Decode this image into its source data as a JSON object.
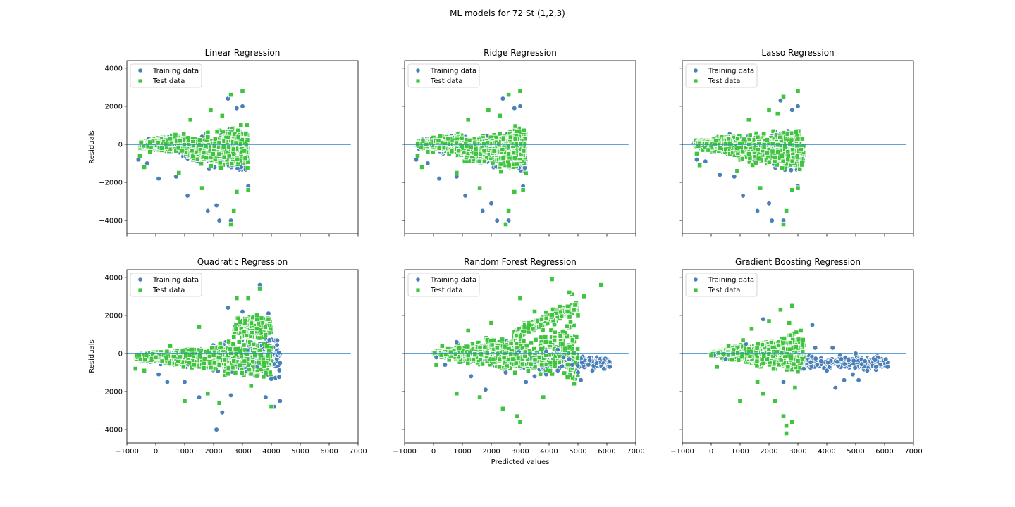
{
  "figure": {
    "title": "ML models for 72 St (1,2,3)"
  },
  "colors": {
    "training": "#4a7fb8",
    "test": "#3ec43e",
    "zero_line": "#2e86c8",
    "axes": "#000000"
  },
  "shared_axes": {
    "xlim": [
      -1000,
      7000
    ],
    "ylim": [
      -4700,
      4400
    ],
    "x_ticks": [
      -1000,
      0,
      1000,
      2000,
      3000,
      4000,
      5000,
      6000,
      7000
    ],
    "y_ticks": [
      -4000,
      -2000,
      0,
      2000,
      4000
    ],
    "xlabel": "Predicted values",
    "ylabel": "Residuals",
    "zero_line_x": [
      -1000,
      6750
    ]
  },
  "legend": {
    "position": "top-left",
    "entries": [
      "Training data",
      "Test data"
    ]
  },
  "chart_data": [
    {
      "type": "scatter",
      "id": "linear",
      "title": "Linear Regression",
      "series": [
        {
          "name": "Training data",
          "marker": "circle",
          "values": [
            [
              -600,
              -800
            ],
            [
              -300,
              -1000
            ],
            [
              100,
              -1800
            ],
            [
              700,
              -1700
            ],
            [
              1100,
              -2700
            ],
            [
              1800,
              -3500
            ],
            [
              2100,
              -3200
            ],
            [
              2200,
              -4000
            ],
            [
              2600,
              -4000
            ],
            [
              2500,
              2400
            ],
            [
              3000,
              2000
            ],
            [
              2800,
              1900
            ],
            [
              3200,
              -2200
            ]
          ]
        },
        {
          "name": "Test data",
          "marker": "square",
          "values": [
            [
              -550,
              -600
            ],
            [
              -400,
              -1200
            ],
            [
              -200,
              -400
            ],
            [
              200,
              -200
            ],
            [
              500,
              300
            ],
            [
              800,
              -1500
            ],
            [
              1200,
              1300
            ],
            [
              1600,
              -2300
            ],
            [
              1900,
              1800
            ],
            [
              2300,
              1500
            ],
            [
              2600,
              2600
            ],
            [
              3000,
              2800
            ],
            [
              2800,
              -2500
            ],
            [
              3200,
              -2400
            ],
            [
              2600,
              -4200
            ],
            [
              2700,
              -3500
            ]
          ]
        }
      ]
    },
    {
      "type": "scatter",
      "id": "ridge",
      "title": "Ridge Regression",
      "series": [
        {
          "name": "Training data",
          "marker": "circle",
          "values": [
            [
              -600,
              -800
            ],
            [
              -200,
              -1000
            ],
            [
              200,
              -1800
            ],
            [
              800,
              -1700
            ],
            [
              1100,
              -2700
            ],
            [
              1700,
              -3500
            ],
            [
              2000,
              -3100
            ],
            [
              2200,
              -4000
            ],
            [
              2600,
              -4000
            ],
            [
              2400,
              2400
            ],
            [
              3000,
              2000
            ],
            [
              2800,
              1900
            ],
            [
              3100,
              -2200
            ]
          ]
        },
        {
          "name": "Test data",
          "marker": "square",
          "values": [
            [
              -550,
              -600
            ],
            [
              -400,
              -1200
            ],
            [
              -200,
              -400
            ],
            [
              200,
              -200
            ],
            [
              500,
              300
            ],
            [
              800,
              -1500
            ],
            [
              1200,
              1300
            ],
            [
              1600,
              -2300
            ],
            [
              1900,
              1800
            ],
            [
              2300,
              1500
            ],
            [
              2600,
              2600
            ],
            [
              3000,
              2800
            ],
            [
              2800,
              -2500
            ],
            [
              3100,
              -2400
            ],
            [
              2500,
              -4200
            ],
            [
              2600,
              -3500
            ]
          ]
        }
      ]
    },
    {
      "type": "scatter",
      "id": "lasso",
      "title": "Lasso Regression",
      "series": [
        {
          "name": "Training data",
          "marker": "circle",
          "values": [
            [
              -500,
              -800
            ],
            [
              -200,
              -900
            ],
            [
              300,
              -1600
            ],
            [
              800,
              -1700
            ],
            [
              1100,
              -2700
            ],
            [
              1600,
              -3500
            ],
            [
              2000,
              -3100
            ],
            [
              2100,
              -4000
            ],
            [
              2500,
              -4000
            ],
            [
              2400,
              2300
            ],
            [
              3000,
              2000
            ],
            [
              2800,
              1800
            ],
            [
              3000,
              -2200
            ]
          ]
        },
        {
          "name": "Test data",
          "marker": "square",
          "values": [
            [
              -500,
              -500
            ],
            [
              -400,
              -1100
            ],
            [
              -100,
              -300
            ],
            [
              300,
              -200
            ],
            [
              600,
              300
            ],
            [
              900,
              -1400
            ],
            [
              1300,
              1300
            ],
            [
              1700,
              -2300
            ],
            [
              2000,
              1800
            ],
            [
              2300,
              1600
            ],
            [
              2500,
              2500
            ],
            [
              3000,
              2800
            ],
            [
              2800,
              -2400
            ],
            [
              3000,
              -2300
            ],
            [
              2500,
              -4200
            ],
            [
              2600,
              -3500
            ]
          ]
        }
      ]
    },
    {
      "type": "scatter",
      "id": "quadratic",
      "title": "Quadratic Regression",
      "series": [
        {
          "name": "Training data",
          "marker": "circle",
          "values": [
            [
              -700,
              -800
            ],
            [
              100,
              -1100
            ],
            [
              400,
              -1500
            ],
            [
              1000,
              -1500
            ],
            [
              1500,
              -2300
            ],
            [
              2100,
              -4000
            ],
            [
              2300,
              -3100
            ],
            [
              2600,
              -2200
            ],
            [
              2500,
              2400
            ],
            [
              3000,
              2200
            ],
            [
              3600,
              3600
            ],
            [
              3900,
              2100
            ],
            [
              4300,
              -2500
            ],
            [
              4100,
              -2800
            ],
            [
              3800,
              -2300
            ],
            [
              4300,
              -500
            ]
          ]
        },
        {
          "name": "Test data",
          "marker": "square",
          "values": [
            [
              -700,
              -800
            ],
            [
              -400,
              -900
            ],
            [
              0,
              -200
            ],
            [
              500,
              400
            ],
            [
              1000,
              -2500
            ],
            [
              1500,
              1400
            ],
            [
              1800,
              -2100
            ],
            [
              2200,
              -2600
            ],
            [
              2800,
              2900
            ],
            [
              3600,
              3400
            ],
            [
              3200,
              2900
            ],
            [
              3500,
              2000
            ],
            [
              3900,
              1800
            ],
            [
              4000,
              -2800
            ],
            [
              3300,
              -1700
            ],
            [
              2700,
              -400
            ]
          ]
        }
      ]
    },
    {
      "type": "scatter",
      "id": "random-forest",
      "title": "Random Forest Regression",
      "series": [
        {
          "name": "Training data",
          "marker": "circle",
          "values": [
            [
              100,
              -200
            ],
            [
              400,
              -600
            ],
            [
              800,
              600
            ],
            [
              1300,
              -1200
            ],
            [
              1800,
              -1900
            ],
            [
              2500,
              -1000
            ],
            [
              3200,
              -1500
            ],
            [
              3500,
              -1200
            ],
            [
              3900,
              -1100
            ],
            [
              4300,
              -900
            ],
            [
              4700,
              -300
            ],
            [
              5000,
              -1000
            ],
            [
              5100,
              -1400
            ],
            [
              5500,
              -900
            ],
            [
              5900,
              -800
            ],
            [
              6100,
              -700
            ],
            [
              4800,
              -600
            ],
            [
              4500,
              -200
            ],
            [
              3900,
              100
            ],
            [
              4300,
              200
            ]
          ]
        },
        {
          "name": "Test data",
          "marker": "square",
          "values": [
            [
              100,
              -600
            ],
            [
              300,
              400
            ],
            [
              800,
              -2100
            ],
            [
              1200,
              1200
            ],
            [
              1600,
              -2300
            ],
            [
              2000,
              1600
            ],
            [
              2400,
              -2900
            ],
            [
              2900,
              -3300
            ],
            [
              3000,
              -3600
            ],
            [
              3000,
              2900
            ],
            [
              3500,
              2200
            ],
            [
              4100,
              3900
            ],
            [
              4800,
              3100
            ],
            [
              5800,
              3600
            ],
            [
              5000,
              2000
            ],
            [
              4700,
              3200
            ],
            [
              5200,
              3000
            ],
            [
              4200,
              1100
            ],
            [
              3800,
              -2300
            ],
            [
              3300,
              1500
            ]
          ]
        }
      ]
    },
    {
      "type": "scatter",
      "id": "gradient-boosting",
      "title": "Gradient Boosting Regression",
      "series": [
        {
          "name": "Training data",
          "marker": "circle",
          "values": [
            [
              100,
              -100
            ],
            [
              500,
              -300
            ],
            [
              1200,
              500
            ],
            [
              1800,
              1800
            ],
            [
              2500,
              -1500
            ],
            [
              3200,
              -800
            ],
            [
              3500,
              1500
            ],
            [
              3800,
              -400
            ],
            [
              4000,
              -900
            ],
            [
              4300,
              -1800
            ],
            [
              4600,
              -1400
            ],
            [
              4900,
              -1100
            ],
            [
              5100,
              -1400
            ],
            [
              5400,
              -900
            ],
            [
              5700,
              -700
            ],
            [
              6100,
              -700
            ],
            [
              5000,
              0
            ],
            [
              4500,
              -300
            ],
            [
              3600,
              300
            ],
            [
              4200,
              300
            ]
          ]
        },
        {
          "name": "Test data",
          "marker": "square",
          "values": [
            [
              0,
              -100
            ],
            [
              200,
              -700
            ],
            [
              600,
              400
            ],
            [
              1000,
              -2500
            ],
            [
              1400,
              1300
            ],
            [
              1800,
              -2100
            ],
            [
              2200,
              -2500
            ],
            [
              2400,
              2300
            ],
            [
              2500,
              -3300
            ],
            [
              2600,
              -3800
            ],
            [
              2600,
              -4200
            ],
            [
              2800,
              -3600
            ],
            [
              2800,
              2500
            ],
            [
              3100,
              1200
            ],
            [
              2900,
              -1800
            ],
            [
              2000,
              1700
            ],
            [
              1600,
              -1500
            ],
            [
              1100,
              700
            ],
            [
              2700,
              1600
            ],
            [
              3000,
              -400
            ]
          ]
        }
      ]
    }
  ]
}
